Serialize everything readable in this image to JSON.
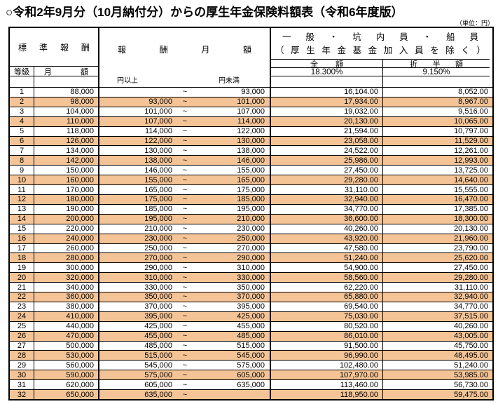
{
  "title": "○令和2年9月分（10月納付分）からの厚生年金保険料額表（令和6年度版）",
  "unit_note": "（単位：円）",
  "colors": {
    "row_band": "#F4C496",
    "border": "#000000"
  },
  "table": {
    "header": {
      "standard_remuneration": "標準報酬",
      "grade": "等級",
      "monthly_amount": "月額",
      "remuneration_monthly": "報酬月額",
      "group_line1": "一般・坑内員・船員",
      "group_line2": "（厚生年金基金加入員を除く）",
      "full_amount": "全額",
      "half_amount": "折半額",
      "full_rate": "18.300%",
      "half_rate": "9.150%",
      "yen_lower": "円以上",
      "yen_upper": "円未満",
      "tilde": "~"
    },
    "rows": [
      {
        "grade": "1",
        "monthly": "88,000",
        "lower": "",
        "upper": "93,000",
        "full": "16,104.00",
        "half": "8,052.00"
      },
      {
        "grade": "2",
        "monthly": "98,000",
        "lower": "93,000",
        "upper": "101,000",
        "full": "17,934.00",
        "half": "8,967.00"
      },
      {
        "grade": "3",
        "monthly": "104,000",
        "lower": "101,000",
        "upper": "107,000",
        "full": "19,032.00",
        "half": "9,516.00"
      },
      {
        "grade": "4",
        "monthly": "110,000",
        "lower": "107,000",
        "upper": "114,000",
        "full": "20,130.00",
        "half": "10,065.00"
      },
      {
        "grade": "5",
        "monthly": "118,000",
        "lower": "114,000",
        "upper": "122,000",
        "full": "21,594.00",
        "half": "10,797.00"
      },
      {
        "grade": "6",
        "monthly": "126,000",
        "lower": "122,000",
        "upper": "130,000",
        "full": "23,058.00",
        "half": "11,529.00"
      },
      {
        "grade": "7",
        "monthly": "134,000",
        "lower": "130,000",
        "upper": "138,000",
        "full": "24,522.00",
        "half": "12,261.00"
      },
      {
        "grade": "8",
        "monthly": "142,000",
        "lower": "138,000",
        "upper": "146,000",
        "full": "25,986.00",
        "half": "12,993.00"
      },
      {
        "grade": "9",
        "monthly": "150,000",
        "lower": "146,000",
        "upper": "155,000",
        "full": "27,450.00",
        "half": "13,725.00"
      },
      {
        "grade": "10",
        "monthly": "160,000",
        "lower": "155,000",
        "upper": "165,000",
        "full": "29,280.00",
        "half": "14,640.00"
      },
      {
        "grade": "11",
        "monthly": "170,000",
        "lower": "165,000",
        "upper": "175,000",
        "full": "31,110.00",
        "half": "15,555.00"
      },
      {
        "grade": "12",
        "monthly": "180,000",
        "lower": "175,000",
        "upper": "185,000",
        "full": "32,940.00",
        "half": "16,470.00"
      },
      {
        "grade": "13",
        "monthly": "190,000",
        "lower": "185,000",
        "upper": "195,000",
        "full": "34,770.00",
        "half": "17,385.00"
      },
      {
        "grade": "14",
        "monthly": "200,000",
        "lower": "195,000",
        "upper": "210,000",
        "full": "36,600.00",
        "half": "18,300.00"
      },
      {
        "grade": "15",
        "monthly": "220,000",
        "lower": "210,000",
        "upper": "230,000",
        "full": "40,260.00",
        "half": "20,130.00"
      },
      {
        "grade": "16",
        "monthly": "240,000",
        "lower": "230,000",
        "upper": "250,000",
        "full": "43,920.00",
        "half": "21,960.00"
      },
      {
        "grade": "17",
        "monthly": "260,000",
        "lower": "250,000",
        "upper": "270,000",
        "full": "47,580.00",
        "half": "23,790.00"
      },
      {
        "grade": "18",
        "monthly": "280,000",
        "lower": "270,000",
        "upper": "290,000",
        "full": "51,240.00",
        "half": "25,620.00"
      },
      {
        "grade": "19",
        "monthly": "300,000",
        "lower": "290,000",
        "upper": "310,000",
        "full": "54,900.00",
        "half": "27,450.00"
      },
      {
        "grade": "20",
        "monthly": "320,000",
        "lower": "310,000",
        "upper": "330,000",
        "full": "58,560.00",
        "half": "29,280.00"
      },
      {
        "grade": "21",
        "monthly": "340,000",
        "lower": "330,000",
        "upper": "350,000",
        "full": "62,220.00",
        "half": "31,110.00"
      },
      {
        "grade": "22",
        "monthly": "360,000",
        "lower": "350,000",
        "upper": "370,000",
        "full": "65,880.00",
        "half": "32,940.00"
      },
      {
        "grade": "23",
        "monthly": "380,000",
        "lower": "370,000",
        "upper": "395,000",
        "full": "69,540.00",
        "half": "34,770.00"
      },
      {
        "grade": "24",
        "monthly": "410,000",
        "lower": "395,000",
        "upper": "425,000",
        "full": "75,030.00",
        "half": "37,515.00"
      },
      {
        "grade": "25",
        "monthly": "440,000",
        "lower": "425,000",
        "upper": "455,000",
        "full": "80,520.00",
        "half": "40,260.00"
      },
      {
        "grade": "26",
        "monthly": "470,000",
        "lower": "455,000",
        "upper": "485,000",
        "full": "86,010.00",
        "half": "43,005.00"
      },
      {
        "grade": "27",
        "monthly": "500,000",
        "lower": "485,000",
        "upper": "515,000",
        "full": "91,500.00",
        "half": "45,750.00"
      },
      {
        "grade": "28",
        "monthly": "530,000",
        "lower": "515,000",
        "upper": "545,000",
        "full": "96,990.00",
        "half": "48,495.00"
      },
      {
        "grade": "29",
        "monthly": "560,000",
        "lower": "545,000",
        "upper": "575,000",
        "full": "102,480.00",
        "half": "51,240.00"
      },
      {
        "grade": "30",
        "monthly": "590,000",
        "lower": "575,000",
        "upper": "605,000",
        "full": "107,970.00",
        "half": "53,985.00"
      },
      {
        "grade": "31",
        "monthly": "620,000",
        "lower": "605,000",
        "upper": "635,000",
        "full": "113,460.00",
        "half": "56,730.00"
      },
      {
        "grade": "32",
        "monthly": "650,000",
        "lower": "635,000",
        "upper": "",
        "full": "118,950.00",
        "half": "59,475.00"
      }
    ]
  }
}
